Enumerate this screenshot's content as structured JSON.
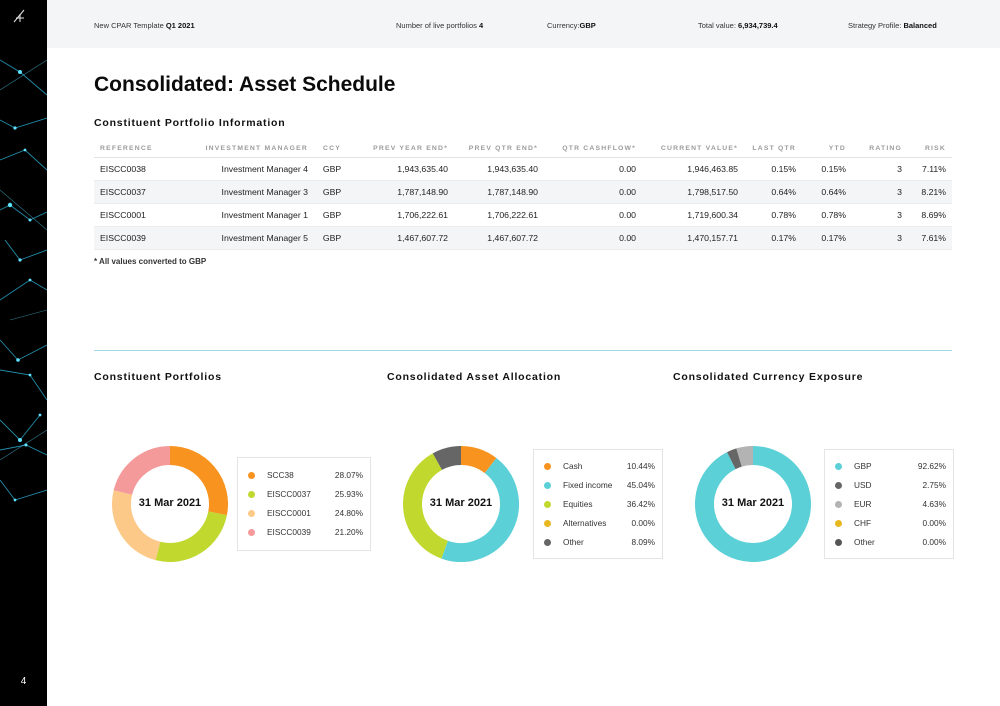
{
  "page_number": "4",
  "header": {
    "template_label": "New CPAR Template",
    "template_period": "Q1 2021",
    "live_portfolios_label": "Number of live portfolios",
    "live_portfolios_value": "4",
    "currency_label": "Currency:",
    "currency_value": "GBP",
    "total_value_label": "Total value:",
    "total_value_value": "6,934,739.4",
    "strategy_label": "Strategy Profile:",
    "strategy_value": "Balanced"
  },
  "title": "Consolidated: Asset Schedule",
  "table": {
    "title": "Constituent Portfolio Information",
    "columns": [
      "REFERENCE",
      "INVESTMENT MANAGER",
      "CCY",
      "PREV YEAR END*",
      "PREV QTR END*",
      "QTR CASHFLOW*",
      "CURRENT VALUE*",
      "LAST QTR",
      "YTD",
      "RATING",
      "RISK"
    ],
    "rows": [
      [
        "EISCC0038",
        "Investment Manager 4",
        "GBP",
        "1,943,635.40",
        "1,943,635.40",
        "0.00",
        "1,946,463.85",
        "0.15%",
        "0.15%",
        "3",
        "7.11%"
      ],
      [
        "EISCC0037",
        "Investment Manager 3",
        "GBP",
        "1,787,148.90",
        "1,787,148.90",
        "0.00",
        "1,798,517.50",
        "0.64%",
        "0.64%",
        "3",
        "8.21%"
      ],
      [
        "EISCC0001",
        "Investment Manager 1",
        "GBP",
        "1,706,222.61",
        "1,706,222.61",
        "0.00",
        "1,719,600.34",
        "0.78%",
        "0.78%",
        "3",
        "8.69%"
      ],
      [
        "EISCC0039",
        "Investment Manager 5",
        "GBP",
        "1,467,607.72",
        "1,467,607.72",
        "0.00",
        "1,470,157.71",
        "0.17%",
        "0.17%",
        "3",
        "7.61%"
      ]
    ],
    "footnote": "* All values converted to GBP"
  },
  "charts": [
    {
      "title": "Constituent Portfolios",
      "center_label": "31 Mar 2021",
      "slices": [
        {
          "label": "SCC38",
          "display": "28.07%",
          "value": 28.07,
          "color": "#f7931e"
        },
        {
          "label": "EISCC0037",
          "display": "25.93%",
          "value": 25.93,
          "color": "#c1d82f"
        },
        {
          "label": "EISCC0001",
          "display": "24.80%",
          "value": 24.8,
          "color": "#fcc988"
        },
        {
          "label": "EISCC0039",
          "display": "21.20%",
          "value": 21.2,
          "color": "#f49a9a"
        }
      ]
    },
    {
      "title": "Consolidated Asset Allocation",
      "center_label": "31 Mar 2021",
      "slices": [
        {
          "label": "Cash",
          "display": "10.44%",
          "value": 10.44,
          "color": "#f7931e"
        },
        {
          "label": "Fixed income",
          "display": "45.04%",
          "value": 45.04,
          "color": "#5bd0d6"
        },
        {
          "label": "Equities",
          "display": "36.42%",
          "value": 36.42,
          "color": "#c1d82f"
        },
        {
          "label": "Alternatives",
          "display": "0.00%",
          "value": 0.0,
          "color": "#e8b820"
        },
        {
          "label": "Other",
          "display": "8.09%",
          "value": 8.09,
          "color": "#666666"
        }
      ]
    },
    {
      "title": "Consolidated Currency Exposure",
      "center_label": "31 Mar 2021",
      "slices": [
        {
          "label": "GBP",
          "display": "92.62%",
          "value": 92.62,
          "color": "#5bd0d6"
        },
        {
          "label": "USD",
          "display": "2.75%",
          "value": 2.75,
          "color": "#666666"
        },
        {
          "label": "EUR",
          "display": "4.63%",
          "value": 4.63,
          "color": "#b3b3b3"
        },
        {
          "label": "CHF",
          "display": "0.00%",
          "value": 0.0,
          "color": "#e8b820"
        },
        {
          "label": "Other",
          "display": "0.00%",
          "value": 0.0,
          "color": "#555555"
        }
      ]
    }
  ]
}
